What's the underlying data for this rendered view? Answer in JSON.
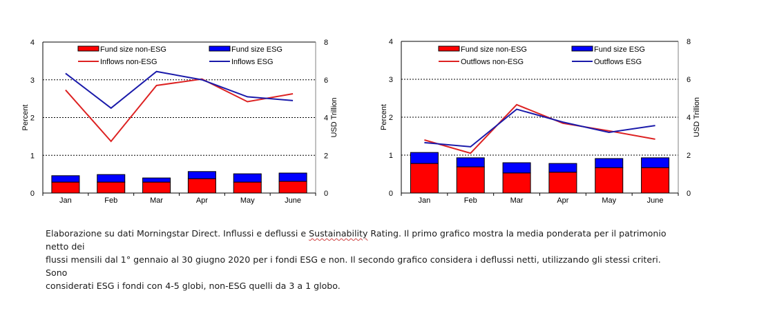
{
  "chart_data": [
    {
      "type": "bar+line",
      "title": "",
      "categories": [
        "Jan",
        "Feb",
        "Mar",
        "Apr",
        "May",
        "June"
      ],
      "ylabel": "Percent",
      "ylim": [
        0,
        4
      ],
      "yticks": [
        0,
        1,
        2,
        3,
        4
      ],
      "y2label": "USD Trillion",
      "y2lim": [
        0,
        8
      ],
      "y2ticks": [
        0,
        2,
        4,
        6,
        8
      ],
      "grid": "horizontal dashed",
      "legend_position": "top",
      "bar_series": [
        {
          "name": "Fund size non-ESG",
          "axis": "right",
          "stacked": true,
          "color": "#ff0000",
          "values": [
            0.58,
            0.58,
            0.58,
            0.76,
            0.58,
            0.62
          ]
        },
        {
          "name": "Fund size ESG",
          "axis": "right",
          "stacked": true,
          "color": "#0000ff",
          "values": [
            0.34,
            0.4,
            0.22,
            0.38,
            0.44,
            0.44
          ]
        }
      ],
      "line_series": [
        {
          "name": "Inflows non-ESG",
          "axis": "left",
          "color": "#dd2222",
          "values": [
            2.73,
            1.37,
            2.85,
            3.02,
            2.42,
            2.63
          ]
        },
        {
          "name": "Inflows ESG",
          "axis": "left",
          "color": "#1a1aaa",
          "values": [
            3.17,
            2.25,
            3.22,
            3.0,
            2.55,
            2.45
          ]
        }
      ],
      "legend": [
        "Fund size non-ESG",
        "Fund size ESG",
        "Inflows non-ESG",
        "Inflows ESG"
      ]
    },
    {
      "type": "bar+line",
      "title": "",
      "categories": [
        "Jan",
        "Feb",
        "Mar",
        "Apr",
        "May",
        "June"
      ],
      "ylabel": "Percent",
      "ylim": [
        0,
        4
      ],
      "yticks": [
        0,
        1,
        2,
        3,
        4
      ],
      "y2label": "USD Trillion",
      "y2lim": [
        0,
        8
      ],
      "y2ticks": [
        0,
        2,
        4,
        6,
        8
      ],
      "grid": "horizontal dashed",
      "legend_position": "top",
      "bar_series": [
        {
          "name": "Fund size non-ESG",
          "axis": "right",
          "stacked": true,
          "color": "#ff0000",
          "values": [
            1.56,
            1.38,
            1.06,
            1.1,
            1.34,
            1.34
          ]
        },
        {
          "name": "Fund size ESG",
          "axis": "right",
          "stacked": true,
          "color": "#0000ff",
          "values": [
            0.58,
            0.48,
            0.54,
            0.46,
            0.48,
            0.52
          ]
        }
      ],
      "line_series": [
        {
          "name": "Outflows non-ESG",
          "axis": "left",
          "color": "#dd2222",
          "values": [
            1.4,
            1.05,
            2.33,
            1.84,
            1.64,
            1.42
          ]
        },
        {
          "name": "Outflows ESG",
          "axis": "left",
          "color": "#1a1aaa",
          "values": [
            1.33,
            1.22,
            2.21,
            1.87,
            1.6,
            1.78
          ]
        }
      ],
      "legend": [
        "Fund size non-ESG",
        "Fund size ESG",
        "Outflows non-ESG",
        "Outflows ESG"
      ]
    }
  ],
  "caption": {
    "line1_pre": "Elaborazione su dati Morningstar Direct. Influssi e deflussi e ",
    "line1_marked": "Sustainability",
    "line1_post": " Rating. Il primo grafico mostra la media ponderata per il patrimonio netto dei",
    "line2": "flussi mensili dal 1° gennaio al 30 giugno 2020 per i fondi ESG e non. Il secondo grafico considera i deflussi netti, utilizzando gli stessi criteri. Sono",
    "line3": "considerati ESG i fondi con 4-5 globi, non-ESG quelli da 3 a 1 globo."
  }
}
